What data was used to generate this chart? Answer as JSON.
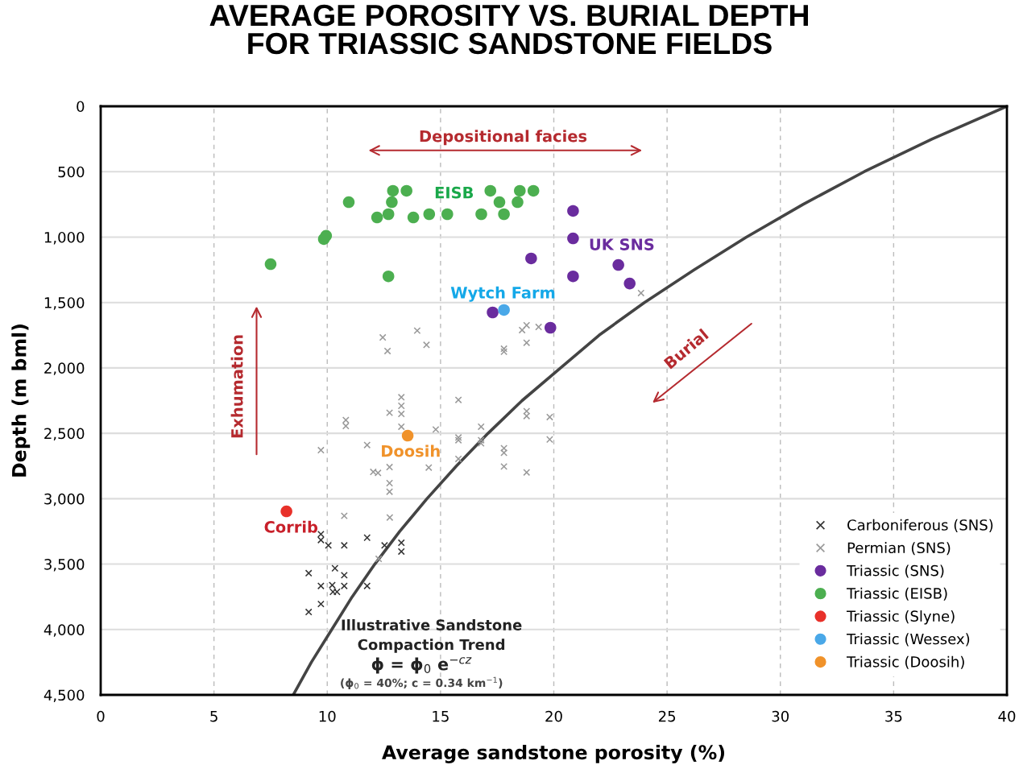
{
  "chart_data": {
    "type": "scatter",
    "title": "AVERAGE POROSITY VS. BURIAL DEPTH\nFOR TRIASSIC SANDSTONE FIELDS",
    "xlabel": "Average sandstone porosity (%)",
    "ylabel": "Depth (m bml)",
    "xlim": [
      0,
      40
    ],
    "xticks": [
      0,
      5,
      10,
      15,
      20,
      25,
      30,
      35,
      40
    ],
    "ylim": [
      4500,
      0
    ],
    "yticks": [
      0,
      {
        "value": 500,
        "label": "500"
      },
      {
        "value": 1000,
        "label": "1,000"
      },
      {
        "value": 1500,
        "label": "1,500"
      },
      {
        "value": 2000,
        "label": "2,000"
      },
      {
        "value": 2500,
        "label": "2,500"
      },
      {
        "value": 3000,
        "label": "3,000"
      },
      {
        "value": 3500,
        "label": "3,500"
      },
      {
        "value": 4000,
        "label": "4,000"
      },
      {
        "value": 4500,
        "label": "4,500"
      }
    ],
    "grid": true,
    "legend": "bottom right",
    "series": [
      {
        "name": "Carboniferous (SNS)",
        "color": "#333333",
        "marker": "cross",
        "x": [
          9.72,
          9.72,
          10.05,
          10.75,
          11.76,
          12.53,
          13.27,
          13.27,
          9.18,
          10.34,
          10.75,
          10.75,
          9.72,
          10.22,
          10.25,
          10.43,
          11.76,
          9.72,
          9.18
        ],
        "values": [
          3271,
          3316,
          3357,
          3357,
          3298,
          3357,
          3337,
          3404,
          3569,
          3532,
          3585,
          3667,
          3667,
          3661,
          3712,
          3712,
          3667,
          3805,
          3866
        ]
      },
      {
        "name": "Permian (SNS)",
        "color": "#999999",
        "marker": "cross",
        "x": [
          12.45,
          12.66,
          13.97,
          14.38,
          18.8,
          18.6,
          19.33,
          18.8,
          17.8,
          17.8,
          13.27,
          13.27,
          13.27,
          12.75,
          13.27,
          10.82,
          10.82,
          15.79,
          14.79,
          16.79,
          15.79,
          15.79,
          16.79,
          16.79,
          18.8,
          18.8,
          19.82,
          19.82,
          9.72,
          11.76,
          15.79,
          17.8,
          17.8,
          17.8,
          18.8,
          12.75,
          14.48,
          12.03,
          12.24,
          12.75,
          12.75,
          23.85,
          10.75,
          12.76,
          12.27
        ],
        "values": [
          1767,
          1871,
          1715,
          1824,
          1674,
          1711,
          1687,
          1808,
          1853,
          1876,
          2224,
          2290,
          2352,
          2343,
          2450,
          2399,
          2444,
          2245,
          2471,
          2450,
          2532,
          2553,
          2553,
          2577,
          2331,
          2368,
          2376,
          2547,
          2629,
          2590,
          2696,
          2614,
          2649,
          2754,
          2799,
          2758,
          2762,
          2795,
          2803,
          2881,
          2947,
          1428,
          3131,
          3144,
          3460
        ]
      },
      {
        "name": "Triassic (SNS)",
        "color": "#6a2c9e",
        "marker": "circle",
        "x": [
          20.85,
          20.85,
          19.0,
          22.85,
          20.85,
          23.35,
          17.3,
          19.85
        ],
        "values": [
          800,
          1010,
          1163,
          1213,
          1300,
          1355,
          1576,
          1693
        ]
      },
      {
        "name": "Triassic (EISB)",
        "color": "#4caf50",
        "marker": "circle",
        "x": [
          7.5,
          9.85,
          9.95,
          10.95,
          12.9,
          13.5,
          12.85,
          12.2,
          12.7,
          13.8,
          14.5,
          15.3,
          12.7,
          16.8,
          17.2,
          17.6,
          17.8,
          18.4,
          18.5,
          19.1
        ],
        "values": [
          1207,
          1015,
          990,
          733,
          646,
          646,
          733,
          850,
          825,
          850,
          825,
          825,
          1300,
          825,
          646,
          733,
          825,
          733,
          646,
          646
        ]
      },
      {
        "name": "Triassic (Slyne)",
        "color": "#e8312a",
        "marker": "circle",
        "x": [
          8.2
        ],
        "values": [
          3097
        ]
      },
      {
        "name": "Triassic (Wessex)",
        "color": "#4aa8e8",
        "marker": "circle",
        "x": [
          17.8
        ],
        "values": [
          1557
        ]
      },
      {
        "name": "Triassic (Doosih)",
        "color": "#f0922a",
        "marker": "circle",
        "x": [
          13.55
        ],
        "values": [
          2518
        ]
      },
      {
        "type": "line",
        "color": "#444444",
        "marker": "none",
        "x": [
          40,
          36.7,
          33.7,
          31.0,
          28.5,
          26.2,
          24.0,
          22.0,
          20.3,
          18.6,
          17.1,
          15.7,
          14.4,
          13.2,
          12.1,
          11.1,
          10.2,
          9.3,
          8.5
        ],
        "values": [
          0,
          250,
          500,
          750,
          1000,
          1250,
          1500,
          1750,
          2000,
          2250,
          2500,
          2750,
          3000,
          3250,
          3500,
          3750,
          4000,
          4250,
          4500
        ]
      }
    ],
    "annotations": [
      "Depositional facies",
      "Exhumation",
      "Burial",
      "EISB",
      "UK SNS",
      "Wytch Farm",
      "Doosih",
      "Corrib",
      "Illustrative Sandstone\nCompaction Trend",
      "ϕ = ϕ$_{0}$ e$^{−cz}$",
      "(ϕ$_{0}$ = 40%; c = 0.34 km$^{−1}$)"
    ]
  }
}
